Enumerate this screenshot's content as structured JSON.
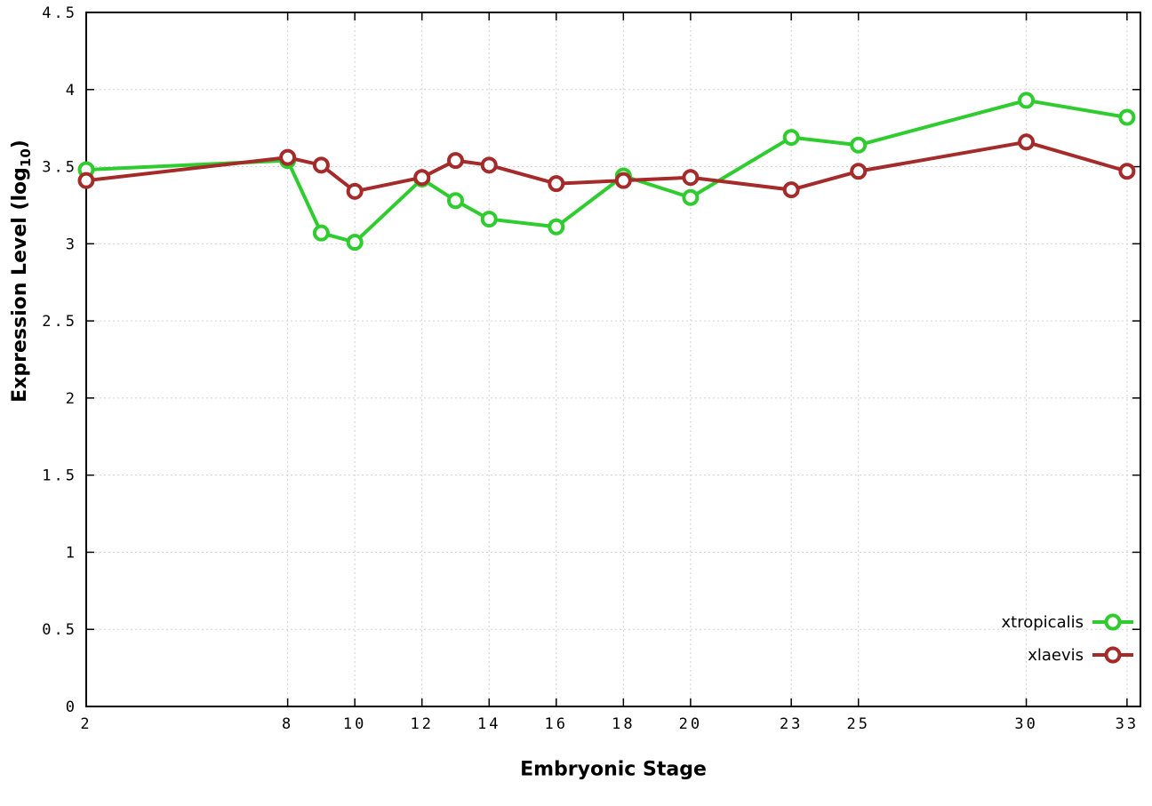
{
  "chart_data": {
    "type": "line",
    "title": "",
    "xlabel": "Embryonic Stage",
    "ylabel": {
      "main": "Expression Level (log",
      "sub": "10",
      "end": ")"
    },
    "xlim": [
      2,
      33.4
    ],
    "ylim": [
      0,
      4.5
    ],
    "grid": true,
    "legend_position": "bottom-right",
    "xticks": [
      2,
      8,
      10,
      12,
      14,
      16,
      18,
      20,
      23,
      25,
      30,
      33
    ],
    "yticks": [
      0,
      0.5,
      1,
      1.5,
      2,
      2.5,
      3,
      3.5,
      4,
      4.5
    ],
    "ytick_labels": [
      "0",
      "0.5",
      "1",
      "1.5",
      "2",
      "2.5",
      "3",
      "3.5",
      "4",
      "4.5"
    ],
    "x": [
      2,
      8,
      9,
      10,
      12,
      13,
      14,
      16,
      18,
      20,
      23,
      25,
      30,
      33
    ],
    "series": [
      {
        "name": "xtropicalis",
        "color": "#2ecc2e",
        "values": [
          3.48,
          3.54,
          3.07,
          3.01,
          3.42,
          3.28,
          3.16,
          3.11,
          3.44,
          3.3,
          3.69,
          3.64,
          3.93,
          3.82
        ]
      },
      {
        "name": "xlaevis",
        "color": "#a52a2a",
        "values": [
          3.41,
          3.56,
          3.51,
          3.34,
          3.43,
          3.54,
          3.51,
          3.39,
          3.41,
          3.43,
          3.35,
          3.47,
          3.66,
          3.47
        ]
      }
    ],
    "style": {
      "grid_color": "#d2d2d2",
      "axis_color": "#000000",
      "background": "#ffffff",
      "line_width": 4,
      "marker_radius": 7.5
    }
  }
}
